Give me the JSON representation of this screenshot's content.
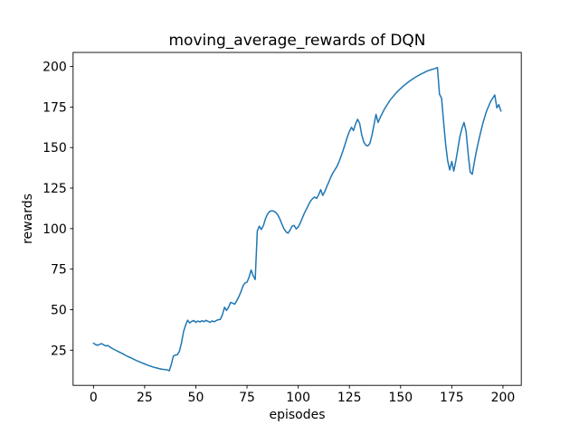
{
  "chart_data": {
    "type": "line",
    "title": "moving_average_rewards of DQN",
    "xlabel": "episodes",
    "ylabel": "rewards",
    "x_ticks": [
      0,
      25,
      50,
      75,
      100,
      125,
      150,
      175,
      200
    ],
    "y_ticks": [
      25,
      50,
      75,
      100,
      125,
      150,
      175,
      200
    ],
    "xlim": [
      -9.95,
      208.95
    ],
    "ylim": [
      3.3,
      208.7
    ],
    "grid": false,
    "legend_position": "none",
    "line_color": "#1f77b4",
    "line_width": 1.5,
    "series": [
      {
        "name": "moving_average_rewards",
        "x_start": 0,
        "x_step": 1,
        "values": [
          29.3,
          28.5,
          28.0,
          28.6,
          29.0,
          28.3,
          27.6,
          27.9,
          27.0,
          26.2,
          25.5,
          24.9,
          24.2,
          23.6,
          23.0,
          22.3,
          21.6,
          21.0,
          20.4,
          19.8,
          19.2,
          18.6,
          18.1,
          17.5,
          17.0,
          16.5,
          16.0,
          15.5,
          15.1,
          14.7,
          14.3,
          14.0,
          13.7,
          13.4,
          13.2,
          13.0,
          12.9,
          12.3,
          16.0,
          21.3,
          22.0,
          22.2,
          24.5,
          29.5,
          36.5,
          40.5,
          43.5,
          41.8,
          42.8,
          43.3,
          42.2,
          43.0,
          42.4,
          43.2,
          42.6,
          43.4,
          42.8,
          42.2,
          43.1,
          42.5,
          43.3,
          43.8,
          44.0,
          47.0,
          51.5,
          49.5,
          51.5,
          54.5,
          54.0,
          53.4,
          55.5,
          58.0,
          61.0,
          64.5,
          66.5,
          67.0,
          70.0,
          74.5,
          71.0,
          68.6,
          98.5,
          101.5,
          99.5,
          102.0,
          106.0,
          109.0,
          110.5,
          111.0,
          110.8,
          110.0,
          108.5,
          106.0,
          103.0,
          100.0,
          98.0,
          97.2,
          99.0,
          101.5,
          102.0,
          99.8,
          101.0,
          103.5,
          106.5,
          109.5,
          112.0,
          114.5,
          117.0,
          118.5,
          119.5,
          118.6,
          121.0,
          124.0,
          120.5,
          123.0,
          126.0,
          129.0,
          132.0,
          134.5,
          136.5,
          138.5,
          141.5,
          145.0,
          148.5,
          152.5,
          156.5,
          160.0,
          162.5,
          160.5,
          164.5,
          167.5,
          165.0,
          158.0,
          153.5,
          151.5,
          151.0,
          152.5,
          157.5,
          164.0,
          170.5,
          165.5,
          168.5,
          171.0,
          173.5,
          175.5,
          177.5,
          179.5,
          181.0,
          182.5,
          184.0,
          185.2,
          186.4,
          187.6,
          188.7,
          189.7,
          190.6,
          191.5,
          192.4,
          193.2,
          194.0,
          194.7,
          195.4,
          196.0,
          196.6,
          197.2,
          197.7,
          198.1,
          198.5,
          198.8,
          199.4,
          183.0,
          180.5,
          166.0,
          152.0,
          142.0,
          136.2,
          141.5,
          135.5,
          142.0,
          149.5,
          157.0,
          162.0,
          165.5,
          160.0,
          146.0,
          135.0,
          133.5,
          141.0,
          147.5,
          153.5,
          159.0,
          164.0,
          168.5,
          172.5,
          175.5,
          178.5,
          180.5,
          182.5,
          174.5,
          176.5,
          172.5
        ]
      }
    ]
  }
}
